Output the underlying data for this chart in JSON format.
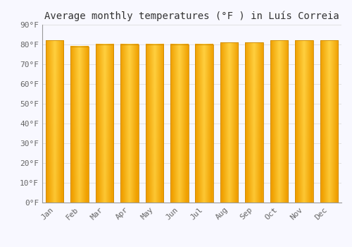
{
  "title": "Average monthly temperatures (°F ) in Luís Correia",
  "months": [
    "Jan",
    "Feb",
    "Mar",
    "Apr",
    "May",
    "Jun",
    "Jul",
    "Aug",
    "Sep",
    "Oct",
    "Nov",
    "Dec"
  ],
  "values": [
    82,
    79,
    80,
    80,
    80,
    80,
    80,
    81,
    81,
    82,
    82,
    82
  ],
  "ylim": [
    0,
    90
  ],
  "yticks": [
    0,
    10,
    20,
    30,
    40,
    50,
    60,
    70,
    80,
    90
  ],
  "ytick_labels": [
    "0°F",
    "10°F",
    "20°F",
    "30°F",
    "40°F",
    "50°F",
    "60°F",
    "70°F",
    "80°F",
    "90°F"
  ],
  "background_color": "#F8F8FF",
  "grid_color": "#DDDDDD",
  "title_fontsize": 10,
  "tick_fontsize": 8,
  "bar_color_center": "#FFD040",
  "bar_color_edge": "#F0A000",
  "bar_width": 0.72
}
